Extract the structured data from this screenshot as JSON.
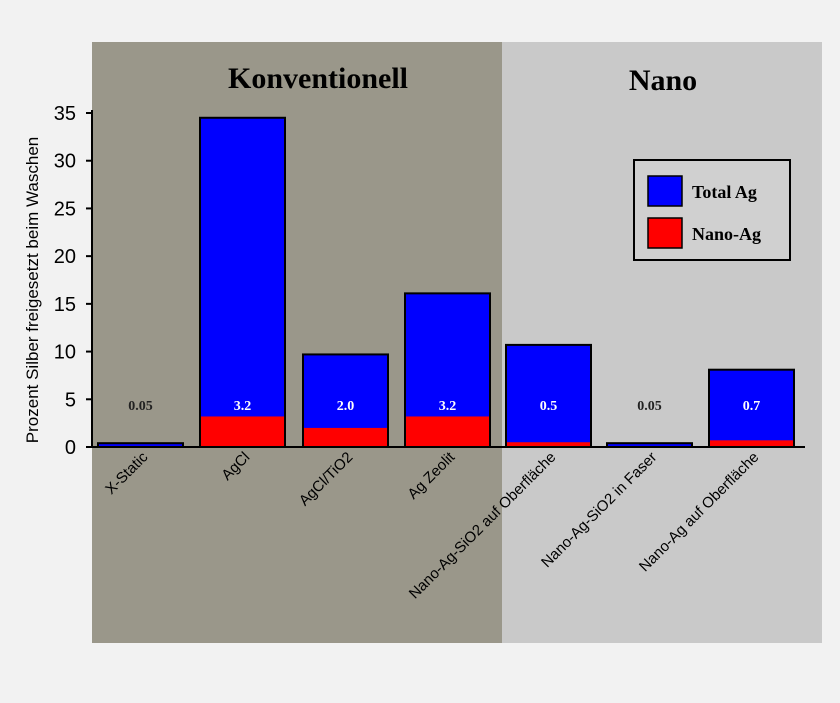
{
  "chart_data": {
    "type": "bar",
    "stacked": "overlay",
    "ylabel": "Prozent Silber freigesetzt beim Waschen",
    "ylim": [
      0,
      35
    ],
    "yticks": [
      0,
      5,
      10,
      15,
      20,
      25,
      30,
      35
    ],
    "groups": [
      {
        "label": "Konventionell",
        "color": "#9a978a",
        "span": [
          0,
          3
        ]
      },
      {
        "label": "Nano",
        "color": "#c9c9c9",
        "span": [
          4,
          6
        ]
      }
    ],
    "categories": [
      "X-Static",
      "AgCl",
      "AgCl/TiO2",
      "Ag Zeolit",
      "Nano-Ag-SiO2 auf Oberfläche",
      "Nano-Ag-SiO2 in Faser",
      "Nano-Ag auf Oberfläche"
    ],
    "series": [
      {
        "name": "Total Ag",
        "color": "#0000ff",
        "values": [
          0.4,
          34.5,
          9.7,
          16.1,
          10.7,
          0.4,
          8.1
        ]
      },
      {
        "name": "Nano-Ag",
        "color": "#ff0000",
        "values": [
          0.05,
          3.2,
          2.0,
          3.2,
          0.5,
          0.05,
          0.7
        ]
      }
    ],
    "data_labels": [
      "0.05",
      "3.2",
      "2.0",
      "3.2",
      "0.5",
      "0.05",
      "0.7"
    ],
    "legend": "top-right",
    "grid": false
  }
}
